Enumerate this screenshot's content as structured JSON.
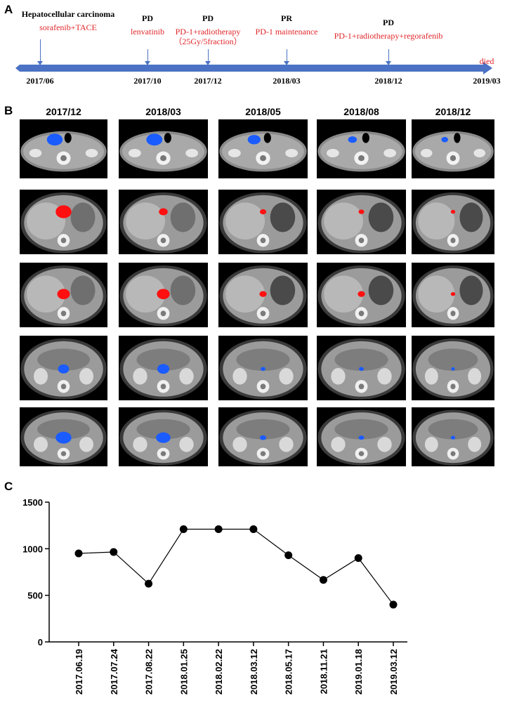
{
  "panels": {
    "a": "A",
    "b": "B",
    "c": "C"
  },
  "timeline": {
    "events": [
      {
        "status": "Hepatocellular carcinoma",
        "treatment": "sorafenib+TACE",
        "date": "2017/06"
      },
      {
        "status": "PD",
        "treatment": "lenvatinib",
        "date": "2017/10"
      },
      {
        "status": "PD",
        "treatment": "PD-1+radiotherapy\n（25Gy/5fraction）",
        "date": "2017/12"
      },
      {
        "status": "PR",
        "treatment": "PD-1 maintenance",
        "date": "2018/03"
      },
      {
        "status": "PD",
        "treatment": "PD-1+radiotherapy+regorafenib",
        "date": "2018/12"
      }
    ],
    "end_label": "died",
    "end_date": "2019/03",
    "colors": {
      "bar": "#4b72c4",
      "treatment_text": "#e0262a"
    }
  },
  "ct_panel": {
    "columns": [
      "2017/12",
      "2018/03",
      "2018/05",
      "2018/08",
      "2018/12"
    ],
    "rows": [
      {
        "level": "neck",
        "lesion_color": "#1a5cff",
        "lesion_size": [
          1.0,
          1.0,
          0.8,
          0.55,
          0.45
        ]
      },
      {
        "level": "upper-abdomen",
        "lesion_color": "#ff1010",
        "lesion_size": [
          1.0,
          0.55,
          0.4,
          0.35,
          0.3
        ]
      },
      {
        "level": "mid-abdomen",
        "lesion_color": "#ff1010",
        "lesion_size": [
          0.8,
          0.8,
          0.45,
          0.45,
          0.3
        ]
      },
      {
        "level": "kidney",
        "lesion_color": "#1a5cff",
        "lesion_size": [
          0.7,
          0.75,
          0.3,
          0.3,
          0.25
        ]
      },
      {
        "level": "lower-abdomen",
        "lesion_color": "#1a5cff",
        "lesion_size": [
          1.0,
          0.9,
          0.4,
          0.35,
          0.3
        ]
      }
    ]
  },
  "chart_data": {
    "type": "line",
    "title": "",
    "xlabel": "",
    "ylabel": "",
    "categories": [
      "2017.06.19",
      "2017.07.24",
      "2017.08.22",
      "2018.01.25",
      "2018.02.22",
      "2018.03.12",
      "2018.05.17",
      "2018.11.21",
      "2019.01.18",
      "2019.03.12"
    ],
    "values": [
      950,
      965,
      625,
      1210,
      1210,
      1210,
      930,
      665,
      900,
      400
    ],
    "ylim": [
      0,
      1500
    ],
    "yticks": [
      0,
      500,
      1000,
      1500
    ],
    "grid": false,
    "marker": "filled-circle"
  }
}
